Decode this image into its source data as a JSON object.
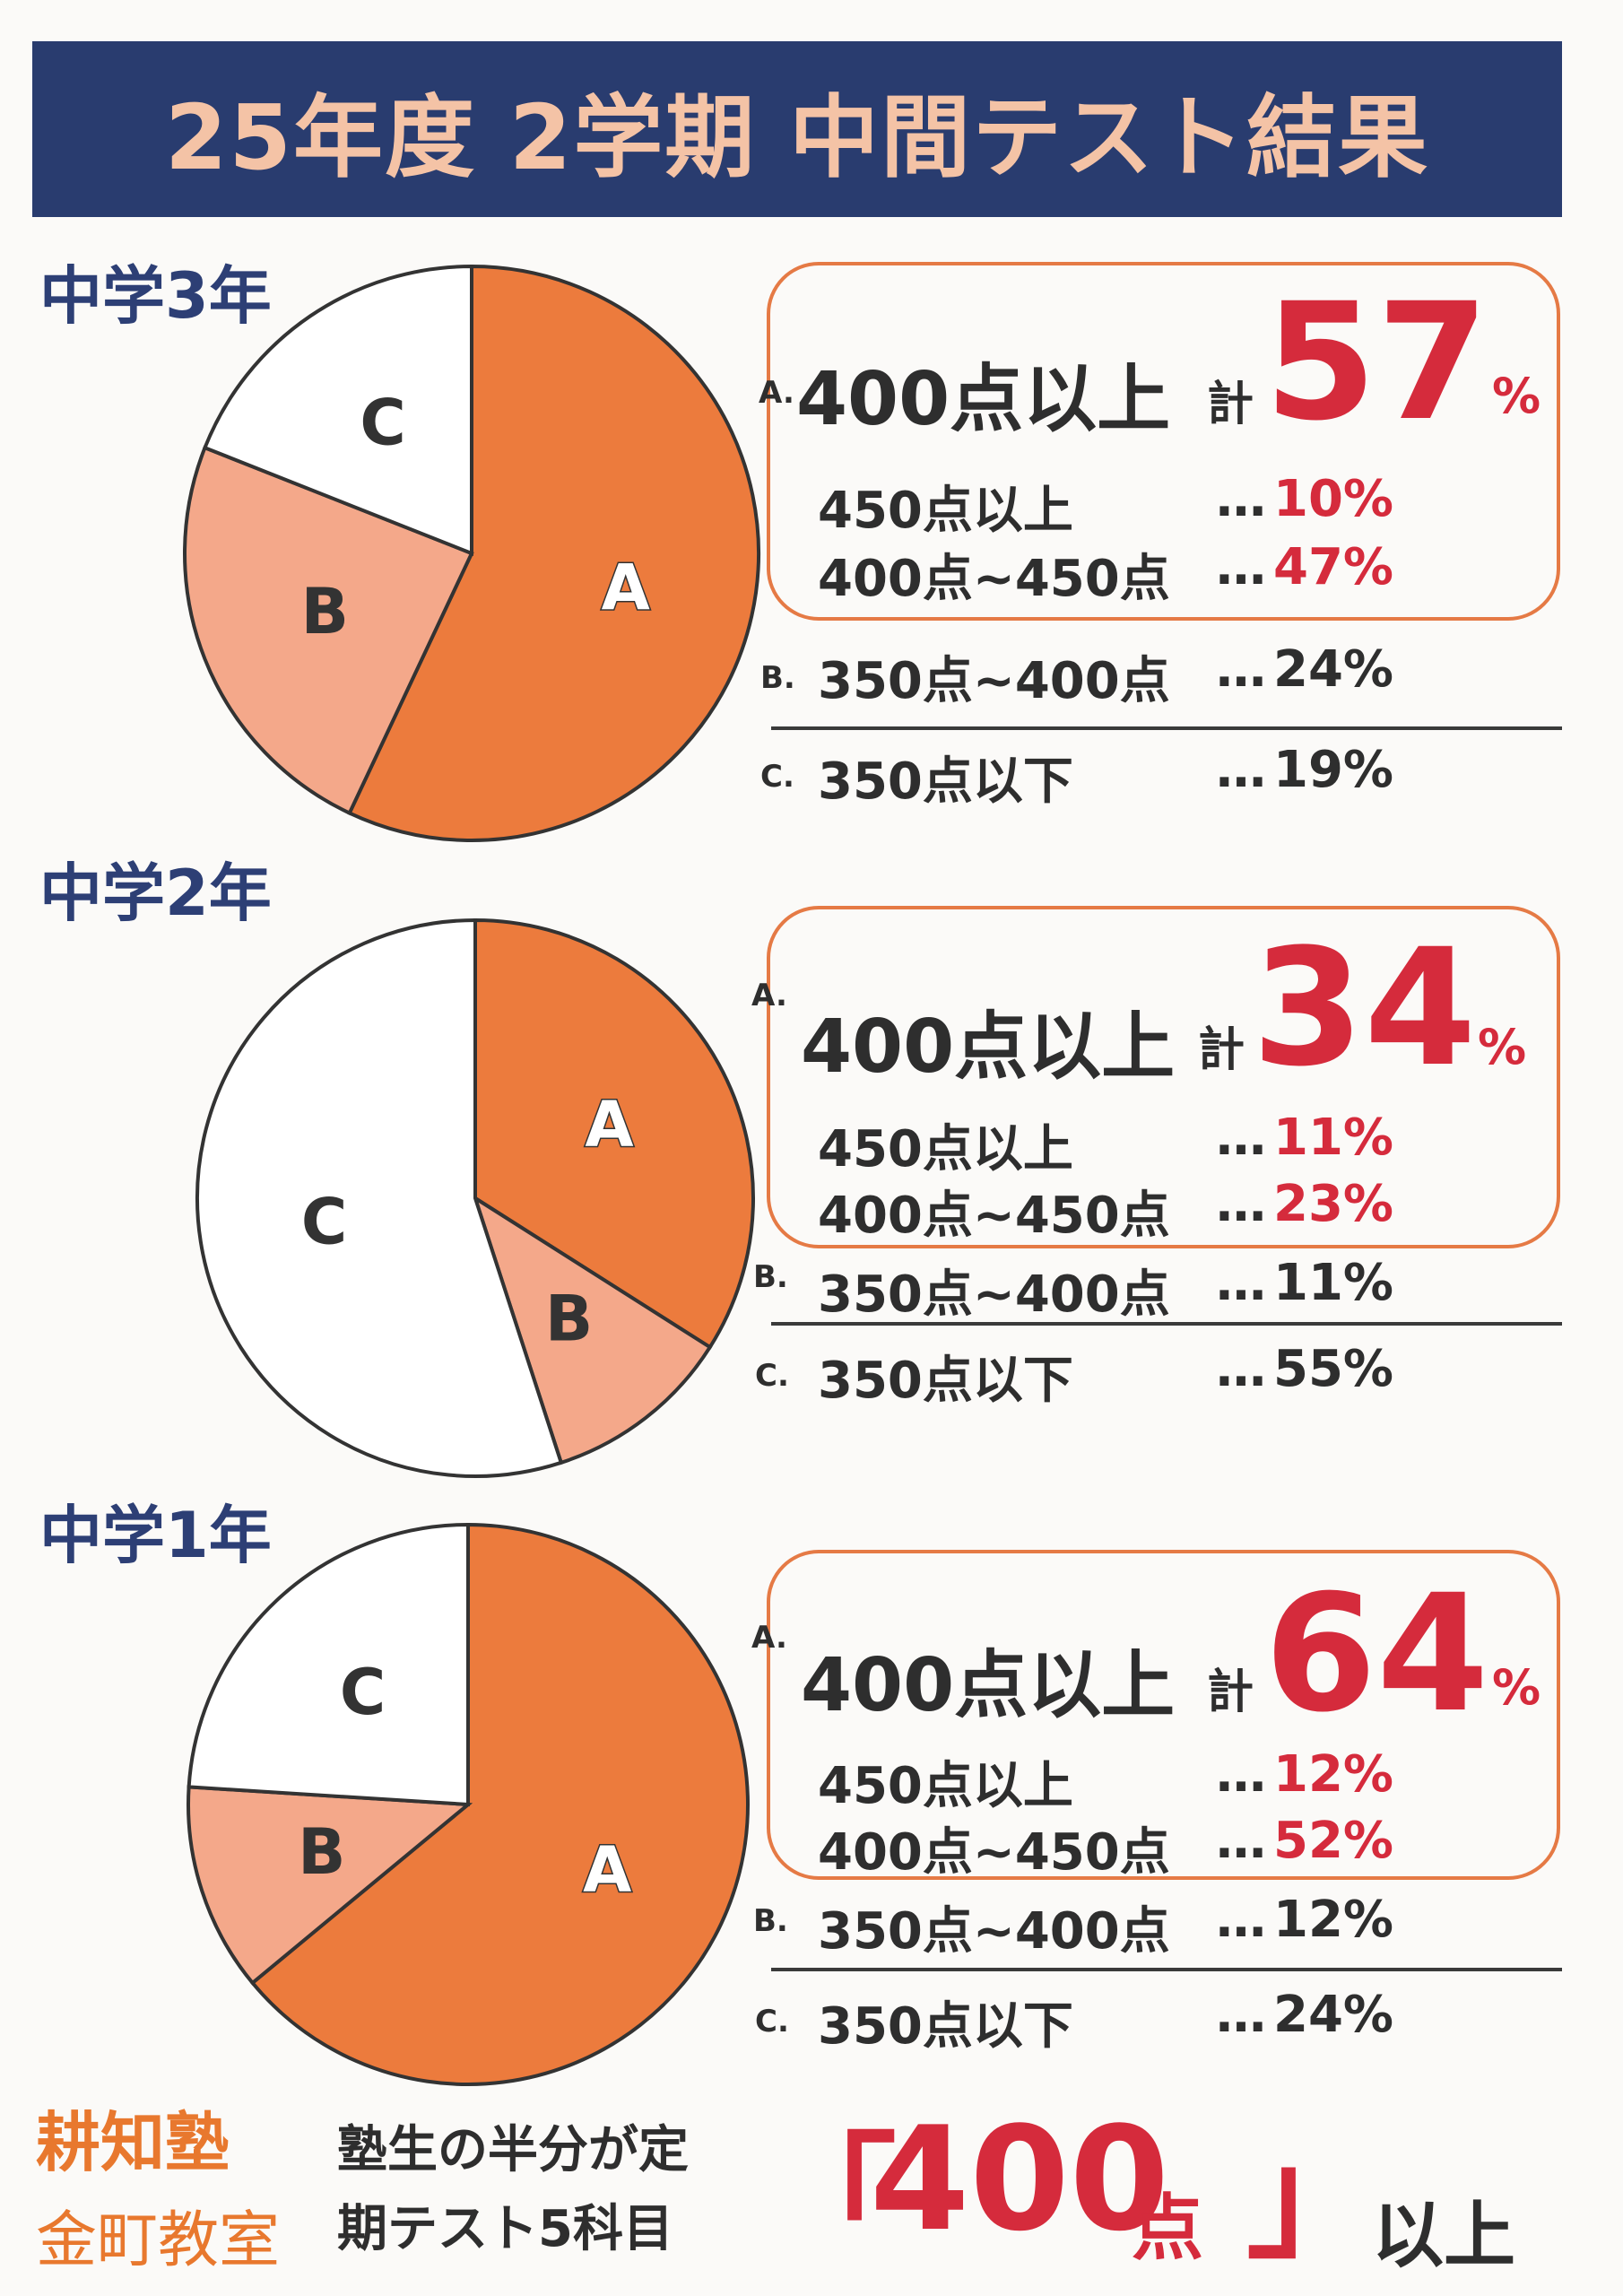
{
  "title": "25年度 2学期 中間テスト結果",
  "colors": {
    "slice_a": "#ec7b3d",
    "slice_b": "#f4a88a",
    "slice_c": "#ffffff",
    "accent_red": "#d52b3c",
    "navy": "#293c6f"
  },
  "grades": [
    {
      "name": "中学3年",
      "a_label": "A.",
      "a_text": "400点以上",
      "total_prefix": "計",
      "total_value": "57",
      "total_unit": "%",
      "sub1_label": "450点以上",
      "sub1_dots": "…",
      "sub1_value": "10%",
      "sub2_label": "400点~450点",
      "sub2_dots": "…",
      "sub2_value": "47%",
      "b_label": "B.",
      "b_text": "350点~400点",
      "b_dots": "…",
      "b_value": "24%",
      "c_label": "C.",
      "c_text": "350点以下",
      "c_dots": "…",
      "c_value": "19%"
    },
    {
      "name": "中学2年",
      "a_label": "A.",
      "a_text": "400点以上",
      "total_prefix": "計",
      "total_value": "34",
      "total_unit": "%",
      "sub1_label": "450点以上",
      "sub1_dots": "…",
      "sub1_value": "11%",
      "sub2_label": "400点~450点",
      "sub2_dots": "…",
      "sub2_value": "23%",
      "b_label": "B.",
      "b_text": "350点~400点",
      "b_dots": "…",
      "b_value": "11%",
      "c_label": "C.",
      "c_text": "350点以下",
      "c_dots": "…",
      "c_value": "55%"
    },
    {
      "name": "中学1年",
      "a_label": "A.",
      "a_text": "400点以上",
      "total_prefix": "計",
      "total_value": "64",
      "total_unit": "%",
      "sub1_label": "450点以上",
      "sub1_dots": "…",
      "sub1_value": "12%",
      "sub2_label": "400点~450点",
      "sub2_dots": "…",
      "sub2_value": "52%",
      "b_label": "B.",
      "b_text": "350点~400点",
      "b_dots": "…",
      "b_value": "12%",
      "c_label": "C.",
      "c_text": "350点以下",
      "c_dots": "…",
      "c_value": "24%"
    }
  ],
  "chart_data": [
    {
      "type": "pie",
      "title": "中学3年",
      "labels": [
        "A",
        "B",
        "C"
      ],
      "values": [
        57,
        24,
        19
      ]
    },
    {
      "type": "pie",
      "title": "中学2年",
      "labels": [
        "A",
        "B",
        "C"
      ],
      "values": [
        34,
        11,
        55
      ]
    },
    {
      "type": "pie",
      "title": "中学1年",
      "labels": [
        "A",
        "B",
        "C"
      ],
      "values": [
        64,
        12,
        24
      ]
    }
  ],
  "footer": {
    "school_name": "耕知塾",
    "branch": "金町教室",
    "line1": "塾生の半分が定",
    "line2": "期テスト5科目",
    "open_bracket": "「",
    "big_score": "400",
    "big_unit": "点",
    "close_bracket": "」",
    "suffix": "以上"
  }
}
